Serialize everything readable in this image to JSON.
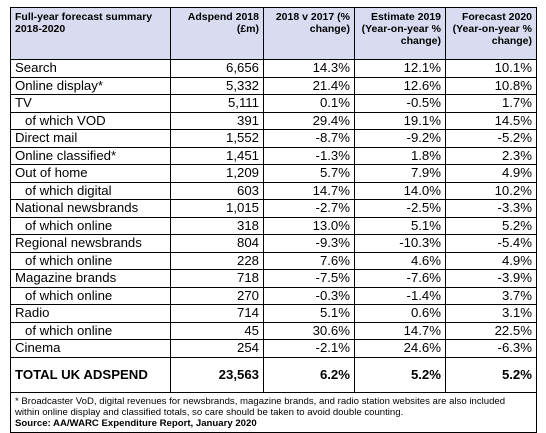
{
  "header": [
    "Full-year forecast summary 2018-2020",
    "Adspend 2018 (£m)",
    "2018 v 2017 (% change)",
    "Estimate 2019 (Year-on-year % change)",
    "Forecast 2020 (Year-on-year % change)"
  ],
  "rows": [
    {
      "label": "Search",
      "sub": false,
      "values": [
        "6,656",
        "14.3%",
        "12.1%",
        "10.1%"
      ]
    },
    {
      "label": "Online display*",
      "sub": false,
      "values": [
        "5,332",
        "21.4%",
        "12.6%",
        "10.8%"
      ]
    },
    {
      "label": "TV",
      "sub": false,
      "values": [
        "5,111",
        "0.1%",
        "-0.5%",
        "1.7%"
      ]
    },
    {
      "label": "of which VOD",
      "sub": true,
      "values": [
        "391",
        "29.4%",
        "19.1%",
        "14.5%"
      ]
    },
    {
      "label": "Direct mail",
      "sub": false,
      "values": [
        "1,552",
        "-8.7%",
        "-9.2%",
        "-5.2%"
      ]
    },
    {
      "label": "Online classified*",
      "sub": false,
      "values": [
        "1,451",
        "-1.3%",
        "1.8%",
        "2.3%"
      ]
    },
    {
      "label": "Out of home",
      "sub": false,
      "values": [
        "1,209",
        "5.7%",
        "7.9%",
        "4.9%"
      ]
    },
    {
      "label": "of which digital",
      "sub": true,
      "values": [
        "603",
        "14.7%",
        "14.0%",
        "10.2%"
      ]
    },
    {
      "label": "National newsbrands",
      "sub": false,
      "values": [
        "1,015",
        "-2.7%",
        "-2.5%",
        "-3.3%"
      ]
    },
    {
      "label": "of which online",
      "sub": true,
      "values": [
        "318",
        "13.0%",
        "5.1%",
        "5.2%"
      ]
    },
    {
      "label": "Regional newsbrands",
      "sub": false,
      "values": [
        "804",
        "-9.3%",
        "-10.3%",
        "-5.4%"
      ]
    },
    {
      "label": "of which online",
      "sub": true,
      "values": [
        "228",
        "7.6%",
        "4.6%",
        "4.9%"
      ]
    },
    {
      "label": "Magazine brands",
      "sub": false,
      "values": [
        "718",
        "-7.5%",
        "-7.6%",
        "-3.9%"
      ]
    },
    {
      "label": "of which online",
      "sub": true,
      "values": [
        "270",
        "-0.3%",
        "-1.4%",
        "3.7%"
      ]
    },
    {
      "label": "Radio",
      "sub": false,
      "values": [
        "714",
        "5.1%",
        "0.6%",
        "3.1%"
      ]
    },
    {
      "label": "of which online",
      "sub": true,
      "values": [
        "45",
        "30.6%",
        "14.7%",
        "22.5%"
      ]
    },
    {
      "label": "Cinema",
      "sub": false,
      "values": [
        "254",
        "-2.1%",
        "24.6%",
        "-6.3%"
      ]
    }
  ],
  "total": {
    "label": "TOTAL UK ADSPEND",
    "values": [
      "23,563",
      "6.2%",
      "5.2%",
      "5.2%"
    ]
  },
  "footnote": "* Broadcaster VoD, digital revenues for newsbrands, magazine brands, and radio station websites are also included within online display and classified totals, so care should be taken to avoid double counting.",
  "source": "Source: AA/WARC Expenditure Report, January 2020",
  "colors": {
    "header_bg": "#d9dcf1",
    "border": "#000000"
  }
}
